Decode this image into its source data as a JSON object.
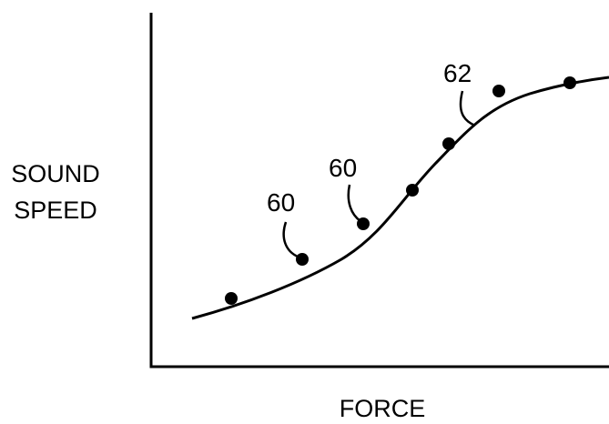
{
  "figure": {
    "y_label": {
      "line1": "SOUND",
      "line2": "SPEED"
    },
    "x_label": "FORCE",
    "reference_numerals": [
      "60",
      "60",
      "62"
    ]
  },
  "colors": {
    "ink": "#000000",
    "background": "#ffffff"
  }
}
